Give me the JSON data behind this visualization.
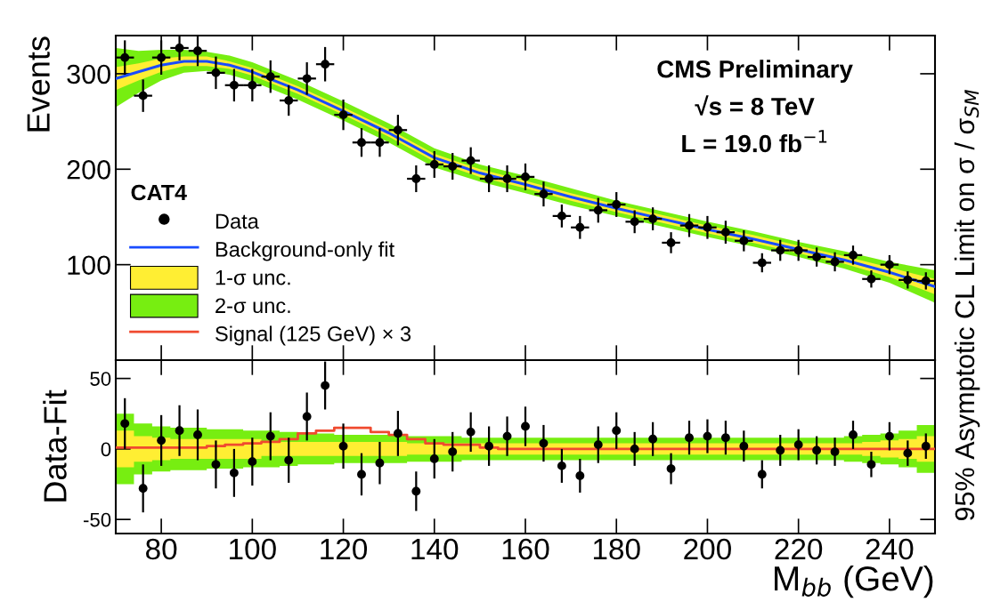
{
  "chart_data": [
    {
      "type": "scatter",
      "xlim": [
        70,
        250
      ],
      "xticks": [
        80,
        100,
        120,
        140,
        160,
        180,
        200,
        220,
        240
      ],
      "ylim": [
        0,
        340
      ],
      "yticks": [
        100,
        200,
        300
      ],
      "tick_labels": "y",
      "ylabel": "Events",
      "y2label": "95% Asymptotic CL Limit on σ / σ$_{SM}$",
      "legend": "bottom left",
      "legend_title": "CAT4",
      "grid": false,
      "annotations": [
        "CMS Preliminary",
        "√s = 8 TeV",
        "L = 19.0 fb$^{−1}$"
      ],
      "series": [
        {
          "name": "2-σ unc.",
          "type": "line",
          "color": "#77ee11",
          "x": [
            70,
            75,
            80,
            85,
            90,
            95,
            100,
            110,
            120,
            130,
            140,
            150,
            160,
            170,
            180,
            190,
            200,
            210,
            220,
            230,
            240,
            250
          ],
          "values": [
            null,
            null,
            null,
            null,
            null,
            null,
            null,
            null,
            null,
            null,
            null,
            null,
            null,
            null,
            null,
            null,
            null,
            null,
            null,
            null,
            null,
            null
          ],
          "lower": [
            265,
            280,
            293,
            301,
            303,
            299,
            292,
            273,
            251,
            228,
            202,
            187,
            175,
            162,
            151,
            140,
            129,
            119,
            108,
            96,
            81,
            60
          ],
          "upper": [
            327,
            324,
            325,
            325,
            323,
            319,
            312,
            293,
            271,
            248,
            222,
            205,
            193,
            180,
            167,
            156,
            145,
            135,
            124,
            114,
            103,
            94
          ]
        },
        {
          "name": "1-σ unc.",
          "type": "line",
          "color": "#ffee33",
          "x": [
            70,
            75,
            80,
            85,
            90,
            95,
            100,
            110,
            120,
            130,
            140,
            150,
            160,
            170,
            180,
            190,
            200,
            210,
            220,
            230,
            240,
            250
          ],
          "values": [
            null,
            null,
            null,
            null,
            null,
            null,
            null,
            null,
            null,
            null,
            null,
            null,
            null,
            null,
            null,
            null,
            null,
            null,
            null,
            null,
            null,
            null
          ],
          "lower": [
            283,
            293,
            302,
            308,
            308,
            305,
            298,
            279,
            257,
            234,
            208,
            192,
            180,
            167,
            155,
            144,
            133,
            123,
            112,
            101,
            87,
            69
          ],
          "upper": [
            307,
            311,
            316,
            318,
            318,
            313,
            306,
            287,
            265,
            242,
            216,
            200,
            188,
            175,
            163,
            152,
            141,
            131,
            120,
            109,
            97,
            85
          ]
        },
        {
          "name": "Background-only fit",
          "type": "line",
          "color": "#1a4cff",
          "line_style": "solid",
          "x": [
            70,
            75,
            80,
            85,
            90,
            95,
            100,
            110,
            120,
            130,
            140,
            150,
            160,
            170,
            180,
            190,
            200,
            210,
            220,
            230,
            240,
            250
          ],
          "values": [
            295,
            302,
            309,
            313,
            313,
            309,
            302,
            283,
            261,
            238,
            212,
            196,
            184,
            171,
            159,
            148,
            137,
            127,
            116,
            105,
            92,
            77
          ]
        },
        {
          "name": "Data",
          "type": "scatter",
          "marker": "circle",
          "color": "#000000",
          "x": [
            72,
            76,
            80,
            84,
            88,
            92,
            96,
            100,
            104,
            108,
            112,
            116,
            120,
            124,
            128,
            132,
            136,
            140,
            144,
            148,
            152,
            156,
            160,
            164,
            168,
            172,
            176,
            180,
            184,
            188,
            192,
            196,
            200,
            204,
            208,
            212,
            216,
            220,
            224,
            228,
            232,
            236,
            240,
            244,
            248
          ],
          "values": [
            317,
            277,
            317,
            327,
            324,
            301,
            288,
            288,
            297,
            272,
            295,
            310,
            257,
            228,
            228,
            241,
            190,
            205,
            203,
            209,
            190,
            190,
            192,
            174,
            151,
            139,
            157,
            163,
            145,
            148,
            123,
            141,
            139,
            134,
            125,
            102,
            115,
            115,
            108,
            103,
            110,
            85,
            100,
            84,
            83
          ],
          "errors": [
            18,
            17,
            18,
            13,
            16,
            17,
            17,
            17,
            17,
            16,
            17,
            18,
            16,
            15,
            15,
            16,
            14,
            14,
            14,
            14,
            14,
            14,
            14,
            13,
            12,
            12,
            13,
            13,
            12,
            12,
            11,
            12,
            12,
            12,
            11,
            10,
            11,
            11,
            10,
            10,
            10,
            9,
            10,
            9,
            9
          ],
          "xerrors": [
            2,
            2,
            2,
            2,
            2,
            2,
            2,
            2,
            2,
            2,
            2,
            2,
            2,
            2,
            2,
            2,
            2,
            2,
            2,
            2,
            2,
            2,
            2,
            2,
            2,
            2,
            2,
            2,
            2,
            2,
            2,
            2,
            2,
            2,
            2,
            2,
            2,
            2,
            2,
            2,
            2,
            2,
            2,
            2,
            2
          ]
        }
      ]
    },
    {
      "type": "scatter",
      "xlim": [
        70,
        250
      ],
      "xticks": [
        80,
        100,
        120,
        140,
        160,
        180,
        200,
        220,
        240
      ],
      "ylim": [
        -60,
        63
      ],
      "yticks": [
        -50,
        0,
        50
      ],
      "xlabel": "M$_{bb}$ (GeV)",
      "ylabel": "Data-Fit",
      "grid": false,
      "series": [
        {
          "type": "step",
          "color": "#77ee11",
          "x": [
            70,
            74,
            78,
            82,
            86,
            90,
            94,
            98,
            102,
            106,
            110,
            114,
            118,
            122,
            126,
            130,
            134,
            138,
            142,
            146,
            150,
            154,
            158,
            162,
            166,
            170,
            174,
            178,
            182,
            186,
            190,
            194,
            198,
            202,
            206,
            210,
            214,
            218,
            222,
            226,
            230,
            234,
            238,
            242,
            246,
            250
          ],
          "lower": [
            -25,
            -18,
            -16,
            -15,
            -15,
            -14,
            -14,
            -13,
            -13,
            -12,
            -11,
            -11,
            -10,
            -10,
            -10,
            -10,
            -9,
            -9,
            -9,
            -8,
            -8,
            -8,
            -8,
            -8,
            -8,
            -8,
            -8,
            -8,
            -8,
            -8,
            -8,
            -8,
            -8,
            -8,
            -8,
            -8,
            -8,
            -8,
            -8,
            -8,
            -9,
            -10,
            -11,
            -13,
            -17,
            -17
          ],
          "upper": [
            25,
            18,
            16,
            15,
            15,
            14,
            14,
            13,
            13,
            12,
            11,
            11,
            10,
            10,
            10,
            10,
            9,
            9,
            9,
            8,
            8,
            8,
            8,
            8,
            8,
            8,
            8,
            8,
            8,
            8,
            8,
            8,
            8,
            8,
            8,
            8,
            8,
            8,
            8,
            8,
            9,
            10,
            11,
            13,
            17,
            17
          ],
          "values": [
            null,
            null,
            null,
            null,
            null,
            null,
            null,
            null,
            null,
            null,
            null,
            null,
            null,
            null,
            null,
            null,
            null,
            null,
            null,
            null,
            null,
            null,
            null,
            null,
            null,
            null,
            null,
            null,
            null,
            null,
            null,
            null,
            null,
            null,
            null,
            null,
            null,
            null,
            null,
            null,
            null,
            null,
            null,
            null,
            null,
            null
          ]
        },
        {
          "type": "step",
          "color": "#ffee33",
          "x": [
            70,
            74,
            78,
            82,
            86,
            90,
            94,
            98,
            102,
            106,
            110,
            114,
            118,
            122,
            126,
            130,
            134,
            138,
            142,
            146,
            150,
            154,
            158,
            162,
            166,
            170,
            174,
            178,
            182,
            186,
            190,
            194,
            198,
            202,
            206,
            210,
            214,
            218,
            222,
            226,
            230,
            234,
            238,
            242,
            246,
            250
          ],
          "lower": [
            -13,
            -9,
            -8,
            -7,
            -7,
            -7,
            -7,
            -7,
            -5,
            -5,
            -5,
            -5,
            -5,
            -5,
            -5,
            -5,
            -4,
            -4,
            -4,
            -4,
            -4,
            -4,
            -4,
            -4,
            -4,
            -4,
            -4,
            -4,
            -4,
            -4,
            -4,
            -4,
            -4,
            -4,
            -4,
            -4,
            -4,
            -4,
            -4,
            -4,
            -4,
            -5,
            -6,
            -7,
            -9,
            -9
          ],
          "upper": [
            13,
            9,
            8,
            7,
            7,
            7,
            7,
            7,
            5,
            5,
            5,
            5,
            5,
            5,
            5,
            5,
            4,
            4,
            4,
            4,
            4,
            4,
            4,
            4,
            4,
            4,
            4,
            4,
            4,
            4,
            4,
            4,
            4,
            4,
            4,
            4,
            4,
            4,
            4,
            4,
            4,
            5,
            6,
            7,
            9,
            9
          ],
          "values": [
            null,
            null,
            null,
            null,
            null,
            null,
            null,
            null,
            null,
            null,
            null,
            null,
            null,
            null,
            null,
            null,
            null,
            null,
            null,
            null,
            null,
            null,
            null,
            null,
            null,
            null,
            null,
            null,
            null,
            null,
            null,
            null,
            null,
            null,
            null,
            null,
            null,
            null,
            null,
            null,
            null,
            null,
            null,
            null,
            null,
            null
          ]
        },
        {
          "name": "Signal (125 GeV) × 3",
          "type": "step",
          "color": "#f04a2f",
          "line_style": "solid",
          "x": [
            70,
            74,
            78,
            82,
            86,
            90,
            94,
            98,
            102,
            106,
            110,
            114,
            118,
            122,
            126,
            130,
            134,
            138,
            142,
            146,
            150,
            154,
            158,
            162,
            166,
            170,
            174,
            178,
            182,
            186,
            190,
            194,
            198,
            202,
            206,
            210,
            214,
            218,
            222,
            226,
            230,
            234,
            238,
            242,
            246,
            250
          ],
          "values": [
            1,
            1,
            1,
            1,
            1,
            2,
            3,
            4,
            5,
            7,
            11,
            13,
            15,
            15,
            12,
            10,
            7,
            4,
            3,
            3,
            1,
            0,
            0,
            0,
            0,
            0,
            0,
            0,
            0,
            0,
            0,
            0,
            0,
            0,
            0,
            0,
            0,
            0,
            0,
            0,
            0,
            0,
            0,
            0,
            0,
            0
          ]
        },
        {
          "type": "scatter",
          "marker": "circle",
          "color": "#000000",
          "x": [
            72,
            76,
            80,
            84,
            88,
            92,
            96,
            100,
            104,
            108,
            112,
            116,
            120,
            124,
            128,
            132,
            136,
            140,
            144,
            148,
            152,
            156,
            160,
            164,
            168,
            172,
            176,
            180,
            184,
            188,
            192,
            196,
            200,
            204,
            208,
            212,
            216,
            220,
            224,
            228,
            232,
            236,
            240,
            244,
            248
          ],
          "values": [
            18,
            -28,
            6,
            13,
            10,
            -11,
            -17,
            -9,
            9,
            -8,
            23,
            45,
            2,
            -18,
            -10,
            11,
            -30,
            -7,
            -2,
            12,
            2,
            9,
            16,
            4,
            -12,
            -19,
            3,
            13,
            0,
            7,
            -14,
            8,
            9,
            8,
            2,
            -18,
            -1,
            3,
            -1,
            -2,
            10,
            -11,
            9,
            -3,
            2
          ],
          "errors": [
            18,
            17,
            18,
            18,
            18,
            17,
            17,
            17,
            17,
            16,
            17,
            17,
            16,
            15,
            15,
            16,
            14,
            14,
            14,
            14,
            14,
            14,
            14,
            13,
            12,
            12,
            13,
            13,
            12,
            12,
            11,
            12,
            12,
            12,
            11,
            10,
            11,
            11,
            10,
            10,
            10,
            9,
            10,
            9,
            9
          ]
        }
      ]
    }
  ]
}
